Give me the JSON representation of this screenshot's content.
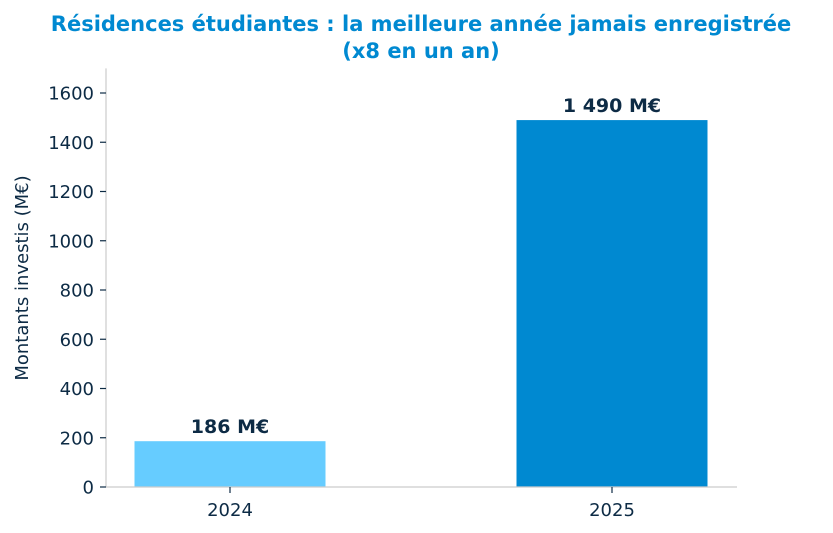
{
  "chart_data": {
    "type": "bar",
    "title_lines": [
      "Résidences étudiantes : la meilleure année jamais enregistrée",
      "(x8 en un an)"
    ],
    "xlabel": "",
    "ylabel": "Montants investis (M€)",
    "categories": [
      "2024",
      "2025"
    ],
    "values": [
      186,
      1490
    ],
    "data_labels": [
      "186 M€",
      "1 490 M€"
    ],
    "bar_colors": [
      "#66ccff",
      "#0089d1"
    ],
    "ylim": [
      0,
      1700
    ],
    "yticks": [
      0,
      200,
      400,
      600,
      800,
      1000,
      1200,
      1400,
      1600
    ],
    "grid": false,
    "legend": "none"
  },
  "colors": {
    "title": "#0089d1",
    "text": "#0d2b45",
    "axis": "#cccccc"
  }
}
